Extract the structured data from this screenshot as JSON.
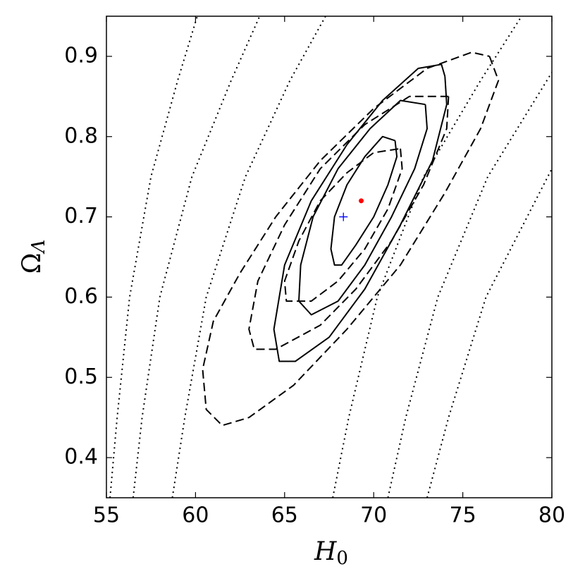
{
  "chart_data": {
    "type": "contour",
    "xlabel": {
      "main": "H",
      "sub": "0"
    },
    "ylabel": {
      "main": "Ω",
      "sub": "Λ"
    },
    "xlim": [
      55,
      80
    ],
    "ylim": [
      0.35,
      0.95
    ],
    "xticks": [
      55,
      60,
      65,
      70,
      75,
      80
    ],
    "yticks": [
      0.4,
      0.5,
      0.6,
      0.7,
      0.8,
      0.9
    ],
    "contours": [
      {
        "style": "solid",
        "color": "#000000",
        "x": [
          71.2,
          71.3,
          70.8,
          70.0,
          69.0,
          68.2,
          67.8,
          67.6,
          67.8,
          68.5,
          69.5,
          70.5,
          71.2
        ],
        "y": [
          0.795,
          0.775,
          0.74,
          0.7,
          0.665,
          0.64,
          0.64,
          0.66,
          0.7,
          0.74,
          0.775,
          0.8,
          0.795
        ]
      },
      {
        "style": "solid",
        "color": "#000000",
        "x": [
          72.9,
          73.0,
          72.3,
          71.0,
          69.5,
          68.0,
          66.5,
          65.8,
          65.9,
          66.6,
          68.0,
          69.8,
          71.5,
          72.9
        ],
        "y": [
          0.84,
          0.81,
          0.76,
          0.7,
          0.64,
          0.595,
          0.578,
          0.595,
          0.64,
          0.7,
          0.76,
          0.81,
          0.845,
          0.84
        ]
      },
      {
        "style": "solid",
        "color": "#000000",
        "x": [
          74.0,
          74.1,
          73.3,
          71.5,
          69.5,
          67.5,
          65.6,
          64.7,
          64.4,
          65.0,
          66.5,
          68.5,
          70.5,
          72.5,
          73.8,
          74.0
        ],
        "y": [
          0.875,
          0.84,
          0.77,
          0.69,
          0.61,
          0.55,
          0.52,
          0.52,
          0.56,
          0.64,
          0.72,
          0.79,
          0.845,
          0.885,
          0.89,
          0.875
        ]
      },
      {
        "style": "dashed",
        "color": "#000000",
        "x": [
          71.5,
          71.6,
          70.8,
          69.5,
          68.0,
          66.5,
          65.1,
          65.0,
          65.8,
          67.0,
          68.5,
          70.0,
          71.5
        ],
        "y": [
          0.785,
          0.76,
          0.71,
          0.66,
          0.62,
          0.595,
          0.595,
          0.62,
          0.67,
          0.72,
          0.755,
          0.78,
          0.785
        ]
      },
      {
        "style": "dashed",
        "color": "#000000",
        "x": [
          74.2,
          74.1,
          72.8,
          71.0,
          69.0,
          67.0,
          64.5,
          63.3,
          63.0,
          63.5,
          65.0,
          67.0,
          69.5,
          72.0,
          74.2
        ],
        "y": [
          0.85,
          0.81,
          0.74,
          0.67,
          0.61,
          0.565,
          0.535,
          0.535,
          0.56,
          0.62,
          0.69,
          0.76,
          0.815,
          0.85,
          0.85
        ]
      },
      {
        "style": "dashed",
        "color": "#000000",
        "x": [
          76.5,
          77.0,
          76.0,
          74.0,
          71.5,
          68.5,
          65.5,
          63.0,
          61.5,
          60.6,
          60.4,
          61.0,
          62.5,
          64.5,
          67.0,
          70.0,
          73.0,
          75.5,
          76.5
        ],
        "y": [
          0.9,
          0.87,
          0.81,
          0.73,
          0.64,
          0.56,
          0.49,
          0.45,
          0.44,
          0.46,
          0.51,
          0.57,
          0.63,
          0.7,
          0.77,
          0.835,
          0.885,
          0.905,
          0.9
        ]
      },
      {
        "style": "dotted",
        "color": "#000000",
        "x": [
          55.2,
          55.6,
          56.3,
          57.5,
          59.0,
          60.1
        ],
        "y": [
          0.35,
          0.45,
          0.6,
          0.75,
          0.87,
          0.95
        ]
      },
      {
        "style": "dotted",
        "color": "#000000",
        "x": [
          56.5,
          57.0,
          58.0,
          59.8,
          62.0,
          63.6
        ],
        "y": [
          0.35,
          0.45,
          0.6,
          0.75,
          0.87,
          0.95
        ]
      },
      {
        "style": "dotted",
        "color": "#000000",
        "x": [
          58.7,
          59.4,
          60.6,
          62.8,
          65.3,
          67.3
        ],
        "y": [
          0.35,
          0.45,
          0.6,
          0.75,
          0.87,
          0.95
        ]
      },
      {
        "style": "dotted",
        "color": "#000000",
        "x": [
          67.7,
          68.6,
          70.2,
          72.8,
          76.0,
          78.3
        ],
        "y": [
          0.35,
          0.45,
          0.6,
          0.75,
          0.87,
          0.95
        ]
      },
      {
        "style": "dotted",
        "color": "#000000",
        "x": [
          70.8,
          71.8,
          73.6,
          76.4,
          80
        ],
        "y": [
          0.35,
          0.45,
          0.6,
          0.75,
          0.88
        ]
      },
      {
        "style": "dotted",
        "color": "#000000",
        "x": [
          73.0,
          74.2,
          76.3,
          80
        ],
        "y": [
          0.35,
          0.45,
          0.6,
          0.76
        ]
      }
    ],
    "points": [
      {
        "x": 69.3,
        "y": 0.72,
        "color": "#ff0000",
        "marker": "o"
      },
      {
        "x": 68.3,
        "y": 0.7,
        "color": "#0000ff",
        "marker": "+"
      }
    ]
  }
}
